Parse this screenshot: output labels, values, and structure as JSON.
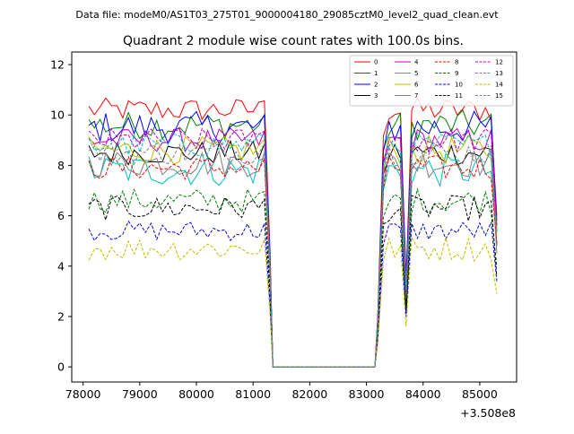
{
  "suptitle": "Data file: modeM0/AS1T03_275T01_9000004180_29085cztM0_level2_quad_clean.evt",
  "chart_data": {
    "type": "line",
    "title": "Quadrant 2 module wise count rates with 100.0s bins.",
    "xlabel": "",
    "ylabel": "",
    "x_offset_label": "+3.508e8",
    "xlim": [
      77800,
      85650
    ],
    "ylim": [
      -0.6,
      12.5
    ],
    "x_ticks": [
      78000,
      79000,
      80000,
      81000,
      82000,
      83000,
      84000,
      85000
    ],
    "x_tick_labels": [
      "78000",
      "79000",
      "80000",
      "81000",
      "82000",
      "83000",
      "84000",
      "85000"
    ],
    "y_ticks": [
      0,
      2,
      4,
      6,
      8,
      10,
      12
    ],
    "y_tick_labels": [
      "0",
      "2",
      "4",
      "6",
      "8",
      "10",
      "12"
    ],
    "grid": false,
    "legend_placement": "top-right",
    "segments": {
      "seg1": {
        "start": 78100,
        "step": 100,
        "count": 32
      },
      "gap": [
        81350,
        81400,
        83100,
        83150
      ],
      "seg2": {
        "start": 83200,
        "step": 100,
        "count": 22
      }
    },
    "series": [
      {
        "name": "0",
        "color": "#ff0000",
        "dash": "solid",
        "base": 10.2,
        "amp": 0.3,
        "dip": 3.4,
        "end": 6.0
      },
      {
        "name": "1",
        "color": "#008000",
        "dash": "solid",
        "base": 9.6,
        "amp": 0.35,
        "dip": 3.0,
        "end": 5.4
      },
      {
        "name": "2",
        "color": "#0000ff",
        "dash": "solid",
        "base": 9.5,
        "amp": 0.4,
        "dip": 3.6,
        "end": 5.8
      },
      {
        "name": "3",
        "color": "#000000",
        "dash": "solid",
        "base": 8.5,
        "amp": 0.3,
        "dip": 2.4,
        "end": 4.9
      },
      {
        "name": "4",
        "color": "#bf00bf",
        "dash": "solid",
        "base": 9.0,
        "amp": 0.3,
        "dip": 3.2,
        "end": 5.6
      },
      {
        "name": "5",
        "color": "#00bfbf",
        "dash": "solid",
        "base": 7.8,
        "amp": 0.4,
        "dip": 2.9,
        "end": 4.8
      },
      {
        "name": "6",
        "color": "#bfbf00",
        "dash": "solid",
        "base": 8.6,
        "amp": 0.35,
        "dip": 3.0,
        "end": 5.2
      },
      {
        "name": "7",
        "color": "#808080",
        "dash": "solid",
        "base": 8.1,
        "amp": 0.35,
        "dip": 2.7,
        "end": 4.5
      },
      {
        "name": "8",
        "color": "#ff0000",
        "dash": "dashed",
        "base": 7.9,
        "amp": 0.3,
        "dip": 2.8,
        "end": 4.9
      },
      {
        "name": "9",
        "color": "#008000",
        "dash": "dashed",
        "base": 6.6,
        "amp": 0.3,
        "dip": 2.2,
        "end": 4.0
      },
      {
        "name": "10",
        "color": "#0000ff",
        "dash": "dashed",
        "base": 5.4,
        "amp": 0.25,
        "dip": 2.0,
        "end": 3.4
      },
      {
        "name": "11",
        "color": "#000000",
        "dash": "dashed",
        "base": 6.3,
        "amp": 0.3,
        "dip": 2.1,
        "end": 3.6
      },
      {
        "name": "12",
        "color": "#bf00bf",
        "dash": "dashed",
        "base": 9.0,
        "amp": 0.3,
        "dip": 3.1,
        "end": 5.6
      },
      {
        "name": "13",
        "color": "#00bfbf",
        "dash": "dashed",
        "base": 8.8,
        "amp": 0.3,
        "dip": 3.0,
        "end": 5.3
      },
      {
        "name": "14",
        "color": "#bfbf00",
        "dash": "dashed",
        "base": 4.7,
        "amp": 0.3,
        "dip": 1.6,
        "end": 2.9
      },
      {
        "name": "15",
        "color": "#808080",
        "dash": "dashed",
        "base": 8.5,
        "amp": 0.3,
        "dip": 2.8,
        "end": 4.8
      }
    ]
  }
}
